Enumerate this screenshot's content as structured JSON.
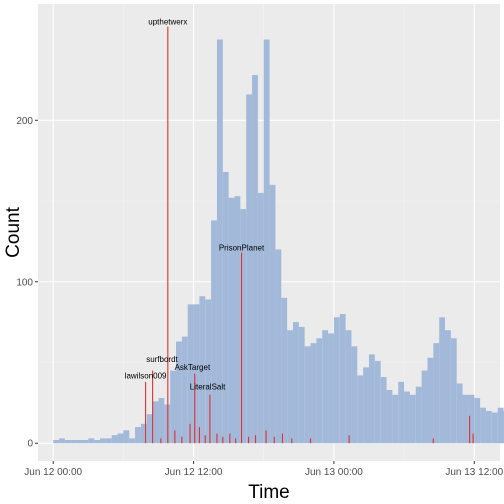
{
  "chart_data": {
    "type": "bar",
    "xlabel": "Time",
    "ylabel": "Count",
    "x_unit": "hours since Jun 12 00:00",
    "x_tick_labels": [
      {
        "x": 0,
        "label": "Jun 12 00:00"
      },
      {
        "x": 12,
        "label": "Jun 12 12:00"
      },
      {
        "x": 24,
        "label": "Jun 13 00:00"
      },
      {
        "x": 36,
        "label": "Jun 13 12:00"
      }
    ],
    "x_range": [
      -1.3,
      38.2
    ],
    "y_ticks": [
      0,
      100,
      200
    ],
    "ylim": [
      -11,
      272
    ],
    "grid": true,
    "background": "#ebebeb",
    "bar_color": "#a3b9d9",
    "spike_color": "#e03030",
    "bin_width_hours": 0.5,
    "series": [
      {
        "values": [
          2,
          3,
          2,
          2,
          2,
          2,
          3,
          2,
          3,
          3,
          5,
          6,
          8,
          3,
          10,
          12,
          18,
          26,
          28,
          24,
          45,
          63,
          66,
          86,
          86,
          91,
          89,
          138,
          250,
          168,
          152,
          153,
          145,
          216,
          228,
          155,
          250,
          160,
          120,
          90,
          70,
          75,
          72,
          60,
          62,
          65,
          70,
          68,
          78,
          80,
          70,
          60,
          42,
          47,
          55,
          51,
          41,
          33,
          30,
          38,
          32,
          30,
          35,
          45,
          53,
          62,
          78,
          70,
          65,
          37,
          30,
          30,
          28,
          22,
          20,
          19,
          22,
          20,
          18,
          15
        ]
      },
      {
        "spikes": [
          {
            "x": 7.9,
            "y": 38
          },
          {
            "x": 8.5,
            "y": 45
          },
          {
            "x": 9.2,
            "y": 3
          },
          {
            "x": 9.8,
            "y": 258
          },
          {
            "x": 10.4,
            "y": 8
          },
          {
            "x": 11.0,
            "y": 4
          },
          {
            "x": 11.7,
            "y": 12
          },
          {
            "x": 12.1,
            "y": 43
          },
          {
            "x": 12.5,
            "y": 10
          },
          {
            "x": 13.0,
            "y": 5
          },
          {
            "x": 13.4,
            "y": 30
          },
          {
            "x": 14.0,
            "y": 6
          },
          {
            "x": 14.5,
            "y": 4
          },
          {
            "x": 15.1,
            "y": 6
          },
          {
            "x": 15.6,
            "y": 3
          },
          {
            "x": 16.1,
            "y": 118
          },
          {
            "x": 16.7,
            "y": 4
          },
          {
            "x": 17.3,
            "y": 5
          },
          {
            "x": 18.2,
            "y": 8
          },
          {
            "x": 18.9,
            "y": 4
          },
          {
            "x": 19.6,
            "y": 6
          },
          {
            "x": 20.4,
            "y": 3
          },
          {
            "x": 22.0,
            "y": 3
          },
          {
            "x": 25.3,
            "y": 5
          },
          {
            "x": 32.5,
            "y": 3
          },
          {
            "x": 35.6,
            "y": 17
          },
          {
            "x": 35.9,
            "y": 6
          }
        ]
      }
    ],
    "annotations": [
      {
        "text": "upthetwerx",
        "x": 9.8,
        "y": 258
      },
      {
        "text": "PrisonPlanet",
        "x": 16.1,
        "y": 118
      },
      {
        "text": "surfbordt",
        "x": 9.3,
        "y": 49
      },
      {
        "text": "AskTarget",
        "x": 11.9,
        "y": 44
      },
      {
        "text": "lawilson009",
        "x": 7.9,
        "y": 39
      },
      {
        "text": "LiteralSalt",
        "x": 13.2,
        "y": 32
      }
    ]
  }
}
